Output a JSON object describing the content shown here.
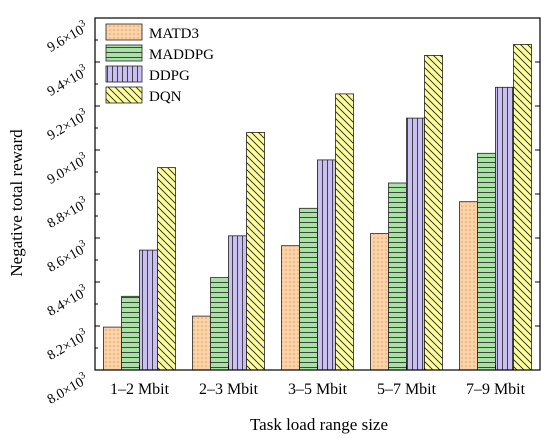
{
  "chart_data": {
    "type": "bar",
    "xlabel": "Task load range size",
    "ylabel": "Negative total reward",
    "categories": [
      "1–2 Mbit",
      "2–3 Mbit",
      "3–5 Mbit",
      "5–7 Mbit",
      "7–9 Mbit"
    ],
    "ylim": [
      8000,
      9600
    ],
    "yticks": [
      {
        "value": 8000,
        "mantissa": "8.0",
        "exp": "3"
      },
      {
        "value": 8200,
        "mantissa": "8.2",
        "exp": "3"
      },
      {
        "value": 8400,
        "mantissa": "8.4",
        "exp": "3"
      },
      {
        "value": 8600,
        "mantissa": "8.6",
        "exp": "3"
      },
      {
        "value": 8800,
        "mantissa": "8.8",
        "exp": "3"
      },
      {
        "value": 9000,
        "mantissa": "9.0",
        "exp": "3"
      },
      {
        "value": 9200,
        "mantissa": "9.2",
        "exp": "3"
      },
      {
        "value": 9400,
        "mantissa": "9.4",
        "exp": "3"
      },
      {
        "value": 9600,
        "mantissa": "9.6",
        "exp": "3"
      }
    ],
    "tick_multiplier": "×10",
    "legend_position": "top-left",
    "grid": false,
    "series": [
      {
        "name": "MATD3",
        "fill": "#fad3a8",
        "pattern": "dots",
        "values": [
          8195,
          8245,
          8565,
          8620,
          8765
        ]
      },
      {
        "name": "MADDPG",
        "fill": "#a9e0a4",
        "pattern": "hlines",
        "values": [
          8335,
          8420,
          8735,
          8850,
          8985
        ]
      },
      {
        "name": "DDPG",
        "fill": "#c9bff0",
        "pattern": "vlines",
        "values": [
          8545,
          8610,
          8955,
          9145,
          9285
        ]
      },
      {
        "name": "DQN",
        "fill": "#ffff9e",
        "pattern": "diag",
        "values": [
          8920,
          9080,
          9255,
          9430,
          9480
        ]
      }
    ]
  }
}
